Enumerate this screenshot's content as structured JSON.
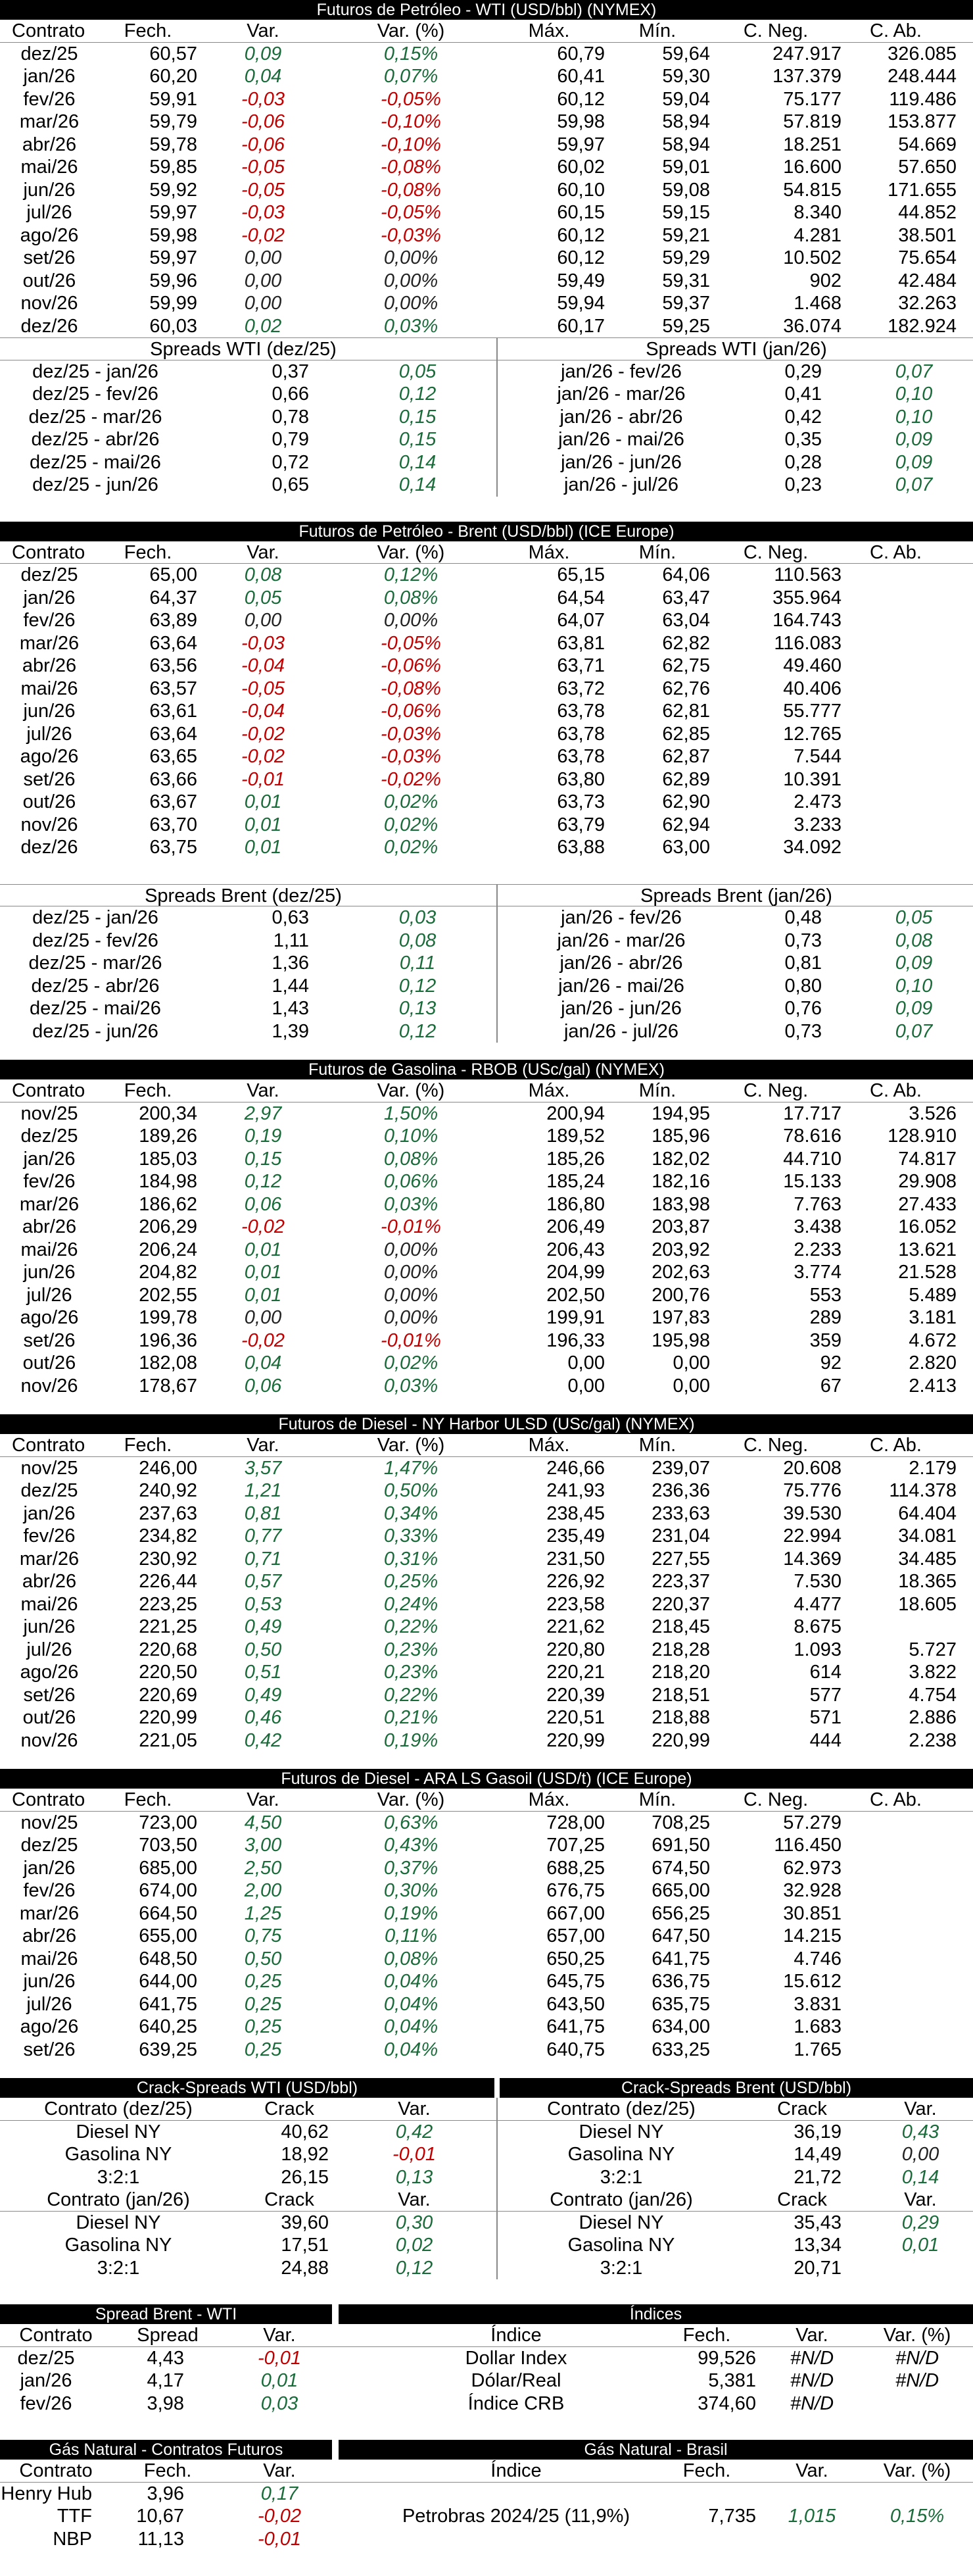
{
  "colors": {
    "positive": "#1a6b3a",
    "negative": "#c00000",
    "header_bg": "#000000"
  },
  "wti": {
    "title": "Futuros de Petróleo - WTI (USD/bbl) (NYMEX)",
    "cols": [
      "Contrato",
      "Fech.",
      "Var.",
      "Var. (%)",
      "Máx.",
      "Mín.",
      "C. Neg.",
      "C. Ab."
    ],
    "rows": [
      [
        "dez/25",
        "60,57",
        "0,09",
        "0,15%",
        "60,79",
        "59,64",
        "247.917",
        "326.085"
      ],
      [
        "jan/26",
        "60,20",
        "0,04",
        "0,07%",
        "60,41",
        "59,30",
        "137.379",
        "248.444"
      ],
      [
        "fev/26",
        "59,91",
        "-0,03",
        "-0,05%",
        "60,12",
        "59,04",
        "75.177",
        "119.486"
      ],
      [
        "mar/26",
        "59,79",
        "-0,06",
        "-0,10%",
        "59,98",
        "58,94",
        "57.819",
        "153.877"
      ],
      [
        "abr/26",
        "59,78",
        "-0,06",
        "-0,10%",
        "59,97",
        "58,94",
        "18.251",
        "54.669"
      ],
      [
        "mai/26",
        "59,85",
        "-0,05",
        "-0,08%",
        "60,02",
        "59,01",
        "16.600",
        "57.650"
      ],
      [
        "jun/26",
        "59,92",
        "-0,05",
        "-0,08%",
        "60,10",
        "59,08",
        "54.815",
        "171.655"
      ],
      [
        "jul/26",
        "59,97",
        "-0,03",
        "-0,05%",
        "60,15",
        "59,15",
        "8.340",
        "44.852"
      ],
      [
        "ago/26",
        "59,98",
        "-0,02",
        "-0,03%",
        "60,12",
        "59,21",
        "4.281",
        "38.501"
      ],
      [
        "set/26",
        "59,97",
        "0,00",
        "0,00%",
        "60,12",
        "59,29",
        "10.502",
        "75.654"
      ],
      [
        "out/26",
        "59,96",
        "0,00",
        "0,00%",
        "59,49",
        "59,31",
        "902",
        "42.484"
      ],
      [
        "nov/26",
        "59,99",
        "0,00",
        "0,00%",
        "59,94",
        "59,37",
        "1.468",
        "32.263"
      ],
      [
        "dez/26",
        "60,03",
        "0,02",
        "0,03%",
        "60,17",
        "59,25",
        "36.074",
        "182.924"
      ]
    ],
    "spreads_left": {
      "title": "Spreads WTI (dez/25)",
      "rows": [
        [
          "dez/25 - jan/26",
          "0,37",
          "0,05"
        ],
        [
          "dez/25 - fev/26",
          "0,66",
          "0,12"
        ],
        [
          "dez/25 - mar/26",
          "0,78",
          "0,15"
        ],
        [
          "dez/25 - abr/26",
          "0,79",
          "0,15"
        ],
        [
          "dez/25 - mai/26",
          "0,72",
          "0,14"
        ],
        [
          "dez/25 - jun/26",
          "0,65",
          "0,14"
        ]
      ]
    },
    "spreads_right": {
      "title": "Spreads WTI (jan/26)",
      "rows": [
        [
          "jan/26 - fev/26",
          "0,29",
          "0,07"
        ],
        [
          "jan/26 - mar/26",
          "0,41",
          "0,10"
        ],
        [
          "jan/26 - abr/26",
          "0,42",
          "0,10"
        ],
        [
          "jan/26 - mai/26",
          "0,35",
          "0,09"
        ],
        [
          "jan/26 - jun/26",
          "0,28",
          "0,09"
        ],
        [
          "jan/26 - jul/26",
          "0,23",
          "0,07"
        ]
      ]
    }
  },
  "brent": {
    "title": "Futuros de Petróleo - Brent (USD/bbl) (ICE Europe)",
    "cols": [
      "Contrato",
      "Fech.",
      "Var.",
      "Var. (%)",
      "Máx.",
      "Mín.",
      "C. Neg.",
      "C. Ab."
    ],
    "rows": [
      [
        "dez/25",
        "65,00",
        "0,08",
        "0,12%",
        "65,15",
        "64,06",
        "110.563",
        ""
      ],
      [
        "jan/26",
        "64,37",
        "0,05",
        "0,08%",
        "64,54",
        "63,47",
        "355.964",
        ""
      ],
      [
        "fev/26",
        "63,89",
        "0,00",
        "0,00%",
        "64,07",
        "63,04",
        "164.743",
        ""
      ],
      [
        "mar/26",
        "63,64",
        "-0,03",
        "-0,05%",
        "63,81",
        "62,82",
        "116.083",
        ""
      ],
      [
        "abr/26",
        "63,56",
        "-0,04",
        "-0,06%",
        "63,71",
        "62,75",
        "49.460",
        ""
      ],
      [
        "mai/26",
        "63,57",
        "-0,05",
        "-0,08%",
        "63,72",
        "62,76",
        "40.406",
        ""
      ],
      [
        "jun/26",
        "63,61",
        "-0,04",
        "-0,06%",
        "63,78",
        "62,81",
        "55.777",
        ""
      ],
      [
        "jul/26",
        "63,64",
        "-0,02",
        "-0,03%",
        "63,78",
        "62,85",
        "12.765",
        ""
      ],
      [
        "ago/26",
        "63,65",
        "-0,02",
        "-0,03%",
        "63,78",
        "62,87",
        "7.544",
        ""
      ],
      [
        "set/26",
        "63,66",
        "-0,01",
        "-0,02%",
        "63,80",
        "62,89",
        "10.391",
        ""
      ],
      [
        "out/26",
        "63,67",
        "0,01",
        "0,02%",
        "63,73",
        "62,90",
        "2.473",
        ""
      ],
      [
        "nov/26",
        "63,70",
        "0,01",
        "0,02%",
        "63,79",
        "62,94",
        "3.233",
        ""
      ],
      [
        "dez/26",
        "63,75",
        "0,01",
        "0,02%",
        "63,88",
        "63,00",
        "34.092",
        ""
      ]
    ],
    "spreads_left": {
      "title": "Spreads Brent (dez/25)",
      "rows": [
        [
          "dez/25 - jan/26",
          "0,63",
          "0,03"
        ],
        [
          "dez/25 - fev/26",
          "1,11",
          "0,08"
        ],
        [
          "dez/25 - mar/26",
          "1,36",
          "0,11"
        ],
        [
          "dez/25 - abr/26",
          "1,44",
          "0,12"
        ],
        [
          "dez/25 - mai/26",
          "1,43",
          "0,13"
        ],
        [
          "dez/25 - jun/26",
          "1,39",
          "0,12"
        ]
      ]
    },
    "spreads_right": {
      "title": "Spreads Brent (jan/26)",
      "rows": [
        [
          "jan/26 - fev/26",
          "0,48",
          "0,05"
        ],
        [
          "jan/26 - mar/26",
          "0,73",
          "0,08"
        ],
        [
          "jan/26 - abr/26",
          "0,81",
          "0,09"
        ],
        [
          "jan/26 - mai/26",
          "0,80",
          "0,10"
        ],
        [
          "jan/26 - jun/26",
          "0,76",
          "0,09"
        ],
        [
          "jan/26 - jul/26",
          "0,73",
          "0,07"
        ]
      ]
    }
  },
  "rbob": {
    "title": "Futuros de Gasolina - RBOB (USc/gal) (NYMEX)",
    "cols": [
      "Contrato",
      "Fech.",
      "Var.",
      "Var. (%)",
      "Máx.",
      "Mín.",
      "C. Neg.",
      "C. Ab."
    ],
    "rows": [
      [
        "nov/25",
        "200,34",
        "2,97",
        "1,50%",
        "200,94",
        "194,95",
        "17.717",
        "3.526"
      ],
      [
        "dez/25",
        "189,26",
        "0,19",
        "0,10%",
        "189,52",
        "185,96",
        "78.616",
        "128.910"
      ],
      [
        "jan/26",
        "185,03",
        "0,15",
        "0,08%",
        "185,26",
        "182,02",
        "44.710",
        "74.817"
      ],
      [
        "fev/26",
        "184,98",
        "0,12",
        "0,06%",
        "185,24",
        "182,16",
        "15.133",
        "29.908"
      ],
      [
        "mar/26",
        "186,62",
        "0,06",
        "0,03%",
        "186,80",
        "183,98",
        "7.763",
        "27.433"
      ],
      [
        "abr/26",
        "206,29",
        "-0,02",
        "-0,01%",
        "206,49",
        "203,87",
        "3.438",
        "16.052"
      ],
      [
        "mai/26",
        "206,24",
        "0,01",
        "0,00%",
        "206,43",
        "203,92",
        "2.233",
        "13.621"
      ],
      [
        "jun/26",
        "204,82",
        "0,01",
        "0,00%",
        "204,99",
        "202,63",
        "3.774",
        "21.528"
      ],
      [
        "jul/26",
        "202,55",
        "0,01",
        "0,00%",
        "202,50",
        "200,76",
        "553",
        "5.489"
      ],
      [
        "ago/26",
        "199,78",
        "0,00",
        "0,00%",
        "199,91",
        "197,83",
        "289",
        "3.181"
      ],
      [
        "set/26",
        "196,36",
        "-0,02",
        "-0,01%",
        "196,33",
        "195,98",
        "359",
        "4.672"
      ],
      [
        "out/26",
        "182,08",
        "0,04",
        "0,02%",
        "0,00",
        "0,00",
        "92",
        "2.820"
      ],
      [
        "nov/26",
        "178,67",
        "0,06",
        "0,03%",
        "0,00",
        "0,00",
        "67",
        "2.413"
      ]
    ]
  },
  "ulsd": {
    "title": "Futuros de Diesel - NY Harbor ULSD (USc/gal) (NYMEX)",
    "cols": [
      "Contrato",
      "Fech.",
      "Var.",
      "Var. (%)",
      "Máx.",
      "Mín.",
      "C. Neg.",
      "C. Ab."
    ],
    "rows": [
      [
        "nov/25",
        "246,00",
        "3,57",
        "1,47%",
        "246,66",
        "239,07",
        "20.608",
        "2.179"
      ],
      [
        "dez/25",
        "240,92",
        "1,21",
        "0,50%",
        "241,93",
        "236,36",
        "75.776",
        "114.378"
      ],
      [
        "jan/26",
        "237,63",
        "0,81",
        "0,34%",
        "238,45",
        "233,63",
        "39.530",
        "64.404"
      ],
      [
        "fev/26",
        "234,82",
        "0,77",
        "0,33%",
        "235,49",
        "231,04",
        "22.994",
        "34.081"
      ],
      [
        "mar/26",
        "230,92",
        "0,71",
        "0,31%",
        "231,50",
        "227,55",
        "14.369",
        "34.485"
      ],
      [
        "abr/26",
        "226,44",
        "0,57",
        "0,25%",
        "226,92",
        "223,37",
        "7.530",
        "18.365"
      ],
      [
        "mai/26",
        "223,25",
        "0,53",
        "0,24%",
        "223,58",
        "220,37",
        "4.477",
        "18.605"
      ],
      [
        "jun/26",
        "221,25",
        "0,49",
        "0,22%",
        "221,62",
        "218,45",
        "8.675",
        ""
      ],
      [
        "jul/26",
        "220,68",
        "0,50",
        "0,23%",
        "220,80",
        "218,28",
        "1.093",
        "5.727"
      ],
      [
        "ago/26",
        "220,50",
        "0,51",
        "0,23%",
        "220,21",
        "218,20",
        "614",
        "3.822"
      ],
      [
        "set/26",
        "220,69",
        "0,49",
        "0,22%",
        "220,39",
        "218,51",
        "577",
        "4.754"
      ],
      [
        "out/26",
        "220,99",
        "0,46",
        "0,21%",
        "220,51",
        "218,88",
        "571",
        "2.886"
      ],
      [
        "nov/26",
        "221,05",
        "0,42",
        "0,19%",
        "220,99",
        "220,99",
        "444",
        "2.238"
      ]
    ]
  },
  "gasoil": {
    "title": "Futuros de Diesel - ARA LS Gasoil (USD/t) (ICE Europe)",
    "cols": [
      "Contrato",
      "Fech.",
      "Var.",
      "Var. (%)",
      "Máx.",
      "Mín.",
      "C. Neg.",
      "C. Ab."
    ],
    "rows": [
      [
        "nov/25",
        "723,00",
        "4,50",
        "0,63%",
        "728,00",
        "708,25",
        "57.279",
        ""
      ],
      [
        "dez/25",
        "703,50",
        "3,00",
        "0,43%",
        "707,25",
        "691,50",
        "116.450",
        ""
      ],
      [
        "jan/26",
        "685,00",
        "2,50",
        "0,37%",
        "688,25",
        "674,50",
        "62.973",
        ""
      ],
      [
        "fev/26",
        "674,00",
        "2,00",
        "0,30%",
        "676,75",
        "665,00",
        "32.928",
        ""
      ],
      [
        "mar/26",
        "664,50",
        "1,25",
        "0,19%",
        "667,00",
        "656,25",
        "30.851",
        ""
      ],
      [
        "abr/26",
        "655,00",
        "0,75",
        "0,11%",
        "657,00",
        "647,50",
        "14.215",
        ""
      ],
      [
        "mai/26",
        "648,50",
        "0,50",
        "0,08%",
        "650,25",
        "641,75",
        "4.746",
        ""
      ],
      [
        "jun/26",
        "644,00",
        "0,25",
        "0,04%",
        "645,75",
        "636,75",
        "15.612",
        ""
      ],
      [
        "jul/26",
        "641,75",
        "0,25",
        "0,04%",
        "643,50",
        "635,75",
        "3.831",
        ""
      ],
      [
        "ago/26",
        "640,25",
        "0,25",
        "0,04%",
        "641,75",
        "634,00",
        "1.683",
        ""
      ],
      [
        "set/26",
        "639,25",
        "0,25",
        "0,04%",
        "640,75",
        "633,25",
        "1.765",
        ""
      ]
    ]
  },
  "crack": {
    "left_title": "Crack-Spreads WTI (USD/bbl)",
    "right_title": "Crack-Spreads Brent (USD/bbl)",
    "left": {
      "h1": [
        "Contrato (dez/25)",
        "Crack",
        "Var."
      ],
      "b1": [
        [
          "Diesel NY",
          "40,62",
          "0,42"
        ],
        [
          "Gasolina NY",
          "18,92",
          "-0,01"
        ],
        [
          "3:2:1",
          "26,15",
          "0,13"
        ]
      ],
      "h2": [
        "Contrato (jan/26)",
        "Crack",
        "Var."
      ],
      "b2": [
        [
          "Diesel NY",
          "39,60",
          "0,30"
        ],
        [
          "Gasolina NY",
          "17,51",
          "0,02"
        ],
        [
          "3:2:1",
          "24,88",
          "0,12"
        ]
      ]
    },
    "right": {
      "h1": [
        "Contrato (dez/25)",
        "Crack",
        "Var."
      ],
      "b1": [
        [
          "Diesel NY",
          "36,19",
          "0,43"
        ],
        [
          "Gasolina NY",
          "14,49",
          "0,00"
        ],
        [
          "3:2:1",
          "21,72",
          "0,14"
        ]
      ],
      "h2": [
        "Contrato (jan/26)",
        "Crack",
        "Var."
      ],
      "b2": [
        [
          "Diesel NY",
          "35,43",
          "0,29"
        ],
        [
          "Gasolina NY",
          "13,34",
          "0,01"
        ],
        [
          "3:2:1",
          "20,71",
          ""
        ]
      ]
    }
  },
  "spread_brent_wti": {
    "title": "Spread Brent - WTI",
    "cols": [
      "Contrato",
      "Spread",
      "Var."
    ],
    "rows": [
      [
        "dez/25",
        "4,43",
        "-0,01"
      ],
      [
        "jan/26",
        "4,17",
        "0,01"
      ],
      [
        "fev/26",
        "3,98",
        "0,03"
      ]
    ]
  },
  "indices": {
    "title": "Índices",
    "cols": [
      "Índice",
      "Fech.",
      "Var.",
      "Var. (%)"
    ],
    "rows": [
      [
        "Dollar Index",
        "99,526",
        "#N/D",
        "#N/D"
      ],
      [
        "Dólar/Real",
        "5,381",
        "#N/D",
        "#N/D"
      ],
      [
        "Índice CRB",
        "374,60",
        "#N/D",
        ""
      ]
    ]
  },
  "gas_natural": {
    "title": "Gás Natural - Contratos Futuros",
    "cols": [
      "Contrato",
      "Fech.",
      "Var."
    ],
    "rows": [
      [
        "Henry Hub",
        "3,96",
        "0,17"
      ],
      [
        "TTF",
        "10,67",
        "-0,02"
      ],
      [
        "NBP",
        "11,13",
        "-0,01"
      ]
    ]
  },
  "gas_brasil": {
    "title": "Gás Natural - Brasil",
    "cols": [
      "Índice",
      "Fech.",
      "Var.",
      "Var. (%)"
    ],
    "rows": [
      [
        "Petrobras 2024/25 (11,9%)",
        "7,735",
        "1,015",
        "0,15%"
      ]
    ]
  }
}
